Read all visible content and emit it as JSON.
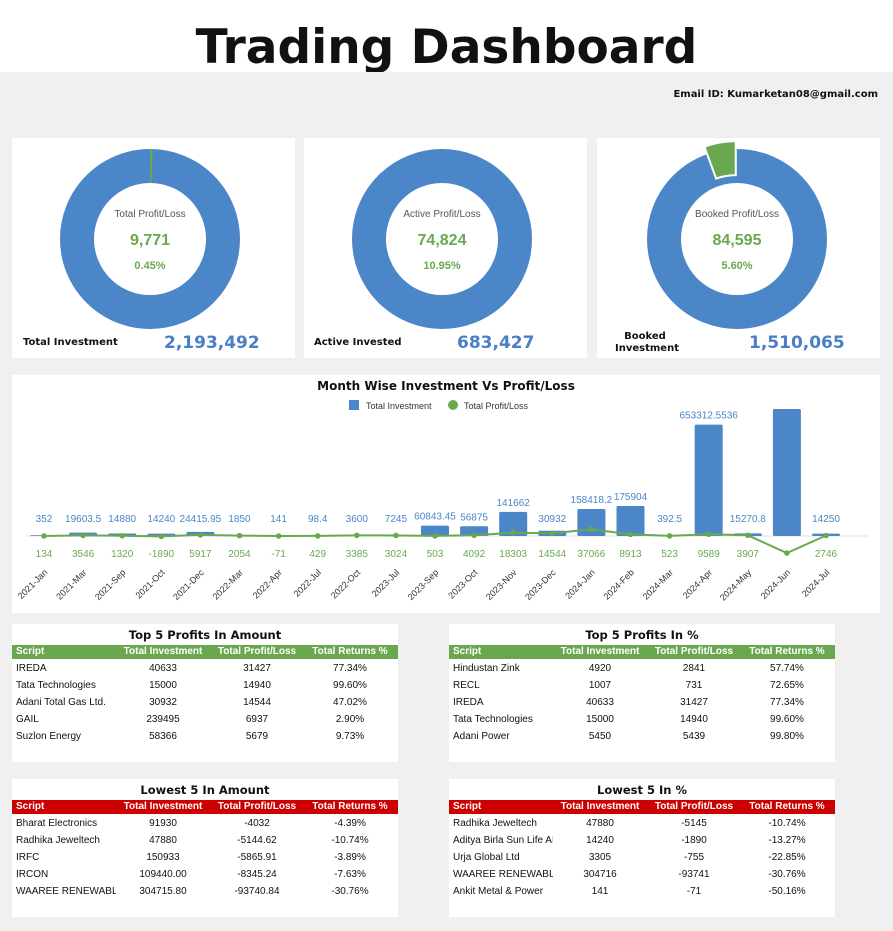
{
  "header": {
    "title": "Trading Dashboard",
    "email": "Email ID: Kumarketan08@gmail.com"
  },
  "kpis": [
    {
      "center_label": "Total Profit/Loss",
      "center_value": "9,771",
      "center_pct": "0.45%",
      "bottom_label": "Total Investment",
      "bottom_value": "2,193,492",
      "donut_fraction": 0.0045
    },
    {
      "center_label": "Active Profit/Loss",
      "center_value": "74,824",
      "center_pct": "10.95%",
      "bottom_label": "Active Invested",
      "bottom_value": "683,427",
      "donut_fraction": 0.0
    },
    {
      "center_label": "Booked Profit/Loss",
      "center_value": "84,595",
      "center_pct": "5.60%",
      "bottom_label": "Booked Investment",
      "bottom_value": "1,510,065",
      "donut_fraction": 0.056
    }
  ],
  "colors": {
    "investment": "#4a86c8",
    "profit": "#6aa84f",
    "header_green": "#6aa84f",
    "header_red": "#cc0000"
  },
  "chart_data": {
    "type": "bar",
    "title": "Month Wise Investment Vs Profit/Loss",
    "legend": [
      "Total Investment",
      "Total Profit/Loss"
    ],
    "legend_position": "top",
    "categories": [
      "2021-Jan",
      "2021-Mar",
      "2021-Sep",
      "2021-Oct",
      "2021-Dec",
      "2022-Mar",
      "2022-Apr",
      "2022-Jul",
      "2022-Oct",
      "2023-Jul",
      "2023-Sep",
      "2023-Oct",
      "2023-Nov",
      "2023-Dec",
      "2024-Jan",
      "2024-Feb",
      "2024-Mar",
      "2024-Apr",
      "2024-May",
      "2024-Jun",
      "2024-Jul"
    ],
    "series": [
      {
        "name": "Total Investment",
        "type": "bar",
        "values": [
          352,
          19603.5,
          14880,
          14240,
          24415.95,
          1850,
          141,
          98.4,
          3600,
          7245,
          60843.45,
          56875,
          141662,
          30932,
          158418.2,
          175904,
          392.5,
          653312.5536,
          15270.8,
          745000,
          14250
        ],
        "labels": [
          "352",
          "19603.5",
          "14880",
          "14240",
          "24415.95",
          "1850",
          "141",
          "98.4",
          "3600",
          "7245",
          "60843.45",
          "56875",
          "141662",
          "30932",
          "158418.2",
          "175904",
          "392.5",
          "653312.5536",
          "15270.8",
          "",
          "14250"
        ]
      },
      {
        "name": "Total Profit/Loss",
        "type": "line",
        "values": [
          134,
          3546,
          1320,
          -1890,
          5917,
          2054,
          -71,
          429,
          3385,
          3024,
          503,
          4092,
          18303,
          14544,
          37066,
          8913,
          523,
          9589,
          3907,
          -93741,
          2746
        ],
        "labels": [
          "134",
          "3546",
          "1320",
          "-1890",
          "5917",
          "2054",
          "-71",
          "429",
          "3385",
          "3024",
          "503",
          "4092",
          "18303",
          "14544",
          "37066",
          "8913",
          "523",
          "9589",
          "3907",
          "",
          "2746"
        ]
      }
    ]
  },
  "tables": [
    {
      "title": "Top 5 Profits In Amount",
      "color": "green",
      "columns": [
        "Script",
        "Total Investment",
        "Total Profit/Loss",
        "Total Returns %"
      ],
      "rows": [
        [
          "IREDA",
          "40633",
          "31427",
          "77.34%"
        ],
        [
          "Tata Technologies",
          "15000",
          "14940",
          "99.60%"
        ],
        [
          "Adani Total Gas Ltd.",
          "30932",
          "14544",
          "47.02%"
        ],
        [
          "GAIL",
          "239495",
          "6937",
          "2.90%"
        ],
        [
          "Suzlon Energy",
          "58366",
          "5679",
          "9.73%"
        ]
      ]
    },
    {
      "title": "Top 5 Profits In %",
      "color": "green",
      "columns": [
        "Script",
        "Total Investment",
        "Total Profit/Loss",
        "Total Returns %"
      ],
      "rows": [
        [
          "Hindustan Zink",
          "4920",
          "2841",
          "57.74%"
        ],
        [
          "RECL",
          "1007",
          "731",
          "72.65%"
        ],
        [
          "IREDA",
          "40633",
          "31427",
          "77.34%"
        ],
        [
          "Tata Technologies",
          "15000",
          "14940",
          "99.60%"
        ],
        [
          "Adani Power",
          "5450",
          "5439",
          "99.80%"
        ]
      ]
    },
    {
      "title": "Lowest 5 In Amount",
      "color": "red",
      "columns": [
        "Script",
        "Total Investment",
        "Total Profit/Loss",
        "Total Returns %"
      ],
      "rows": [
        [
          "Bharat Electronics",
          "91930",
          "-4032",
          "-4.39%"
        ],
        [
          "Radhika Jeweltech",
          "47880",
          "-5144.62",
          "-10.74%"
        ],
        [
          "IRFC",
          "150933",
          "-5865.91",
          "-3.89%"
        ],
        [
          "IRCON",
          "109440.00",
          "-8345.24",
          "-7.63%"
        ],
        [
          "WAAREE RENEWABLE TECH",
          "304715.80",
          "-93740.84",
          "-30.76%"
        ]
      ]
    },
    {
      "title": "Lowest 5 In %",
      "color": "red",
      "columns": [
        "Script",
        "Total Investment",
        "Total Profit/Loss",
        "Total Returns %"
      ],
      "rows": [
        [
          "Radhika Jeweltech",
          "47880",
          "-5145",
          "-10.74%"
        ],
        [
          "Aditya Birla Sun Life AMC",
          "14240",
          "-1890",
          "-13.27%"
        ],
        [
          "Urja Global Ltd",
          "3305",
          "-755",
          "-22.85%"
        ],
        [
          "WAAREE RENEWABLE TECH",
          "304716",
          "-93741",
          "-30.76%"
        ],
        [
          "Ankit Metal & Power",
          "141",
          "-71",
          "-50.16%"
        ]
      ]
    }
  ]
}
